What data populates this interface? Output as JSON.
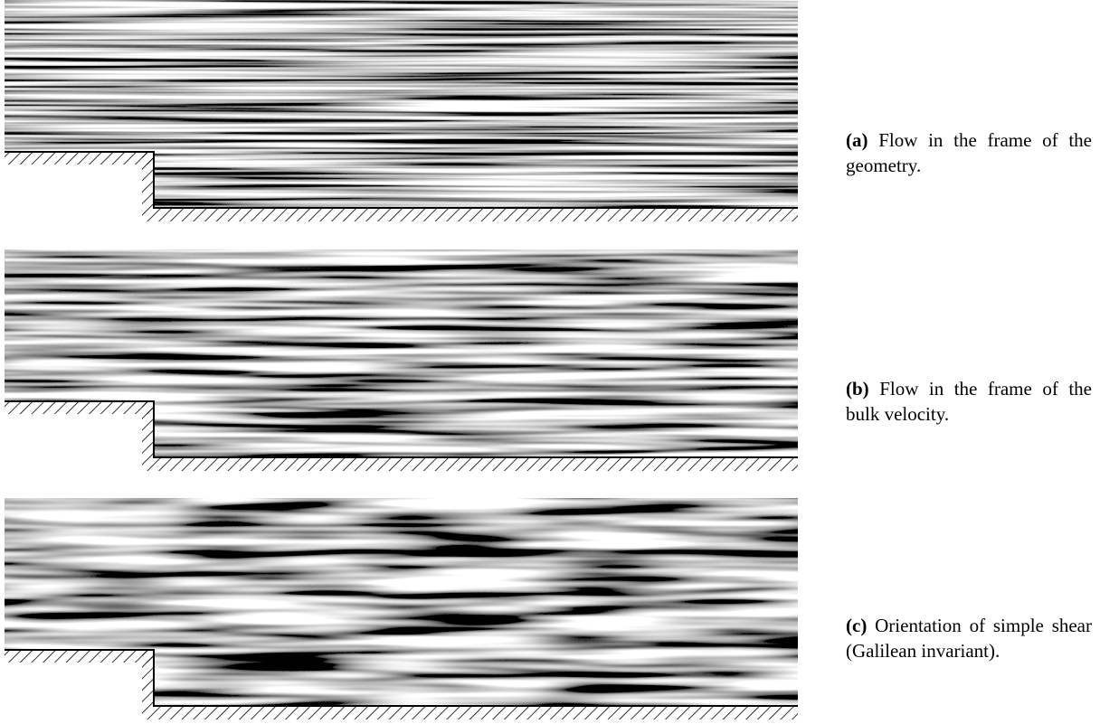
{
  "figures": [
    {
      "label": "(a)",
      "caption": "Flow in the frame of the geometry."
    },
    {
      "label": "(b)",
      "caption": "Flow in the frame of the bulk velocity."
    },
    {
      "label": "(c)",
      "caption": "Orientation of simple shear (Galilean invariant)."
    }
  ]
}
